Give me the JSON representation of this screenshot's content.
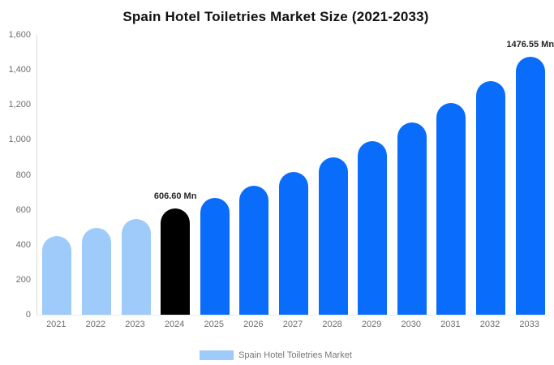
{
  "title": "Spain Hotel Toiletries Market Size (2021-2033)",
  "legend": {
    "label": "Spain Hotel Toiletries Market",
    "swatch_color": "#9fcbfa"
  },
  "y_axis": {
    "tick_labels_top_to_bottom": [
      "1,600",
      "1,400",
      "1,200",
      "1,000",
      "800",
      "600",
      "400",
      "200",
      "0"
    ]
  },
  "colors": {
    "historical_bar": "#9fcbfa",
    "base_year_bar": "#000000",
    "forecast_bar": "#0a6cfb",
    "axis_text": "#6e6e6e",
    "value_label_text": "#262626",
    "axis_line": "#d9d9d9",
    "background": "#ffffff"
  },
  "chart_data": {
    "type": "bar",
    "title": "Spain Hotel Toiletries Market Size (2021-2033)",
    "xlabel": "",
    "ylabel": "",
    "ylim": [
      0,
      1600
    ],
    "y_tick_step": 200,
    "grid": false,
    "legend_position": "bottom",
    "categories": [
      "2021",
      "2022",
      "2023",
      "2024",
      "2025",
      "2026",
      "2027",
      "2028",
      "2029",
      "2030",
      "2031",
      "2032",
      "2033"
    ],
    "values": [
      450.9,
      497.7,
      549.5,
      606.6,
      669.6,
      739.2,
      816.1,
      900.9,
      994.4,
      1097.9,
      1211.9,
      1337.9,
      1476.55
    ],
    "bar_colors": [
      "#9fcbfa",
      "#9fcbfa",
      "#9fcbfa",
      "#000000",
      "#0a6cfb",
      "#0a6cfb",
      "#0a6cfb",
      "#0a6cfb",
      "#0a6cfb",
      "#0a6cfb",
      "#0a6cfb",
      "#0a6cfb",
      "#0a6cfb"
    ],
    "annotations": [
      {
        "category": "2024",
        "label": "606.60 Mn"
      },
      {
        "category": "2033",
        "label": "1476.55 Mn"
      }
    ],
    "series_name": "Spain Hotel Toiletries Market"
  }
}
